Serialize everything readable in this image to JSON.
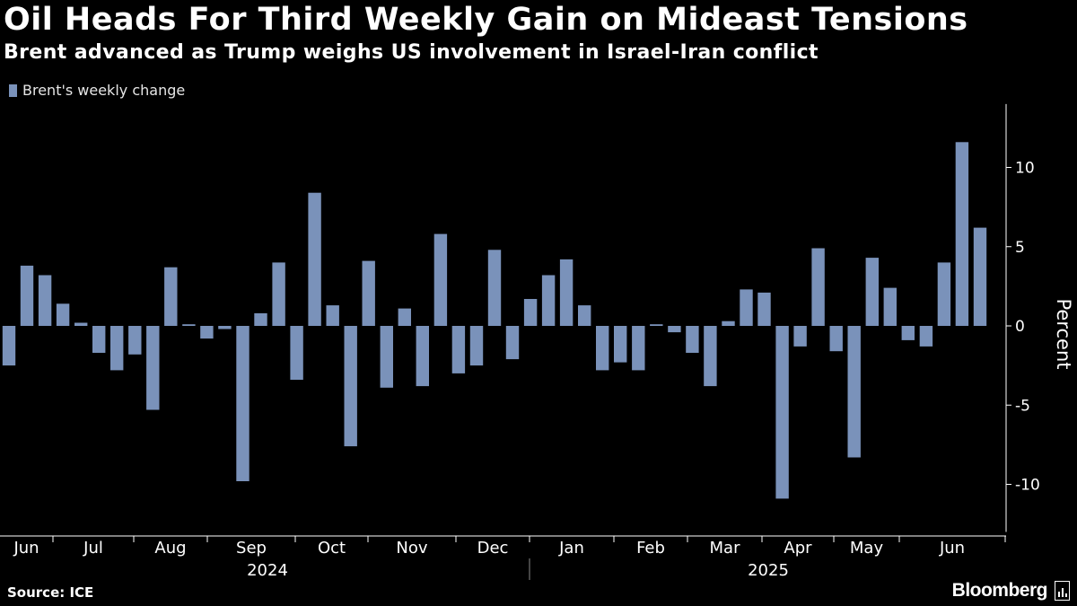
{
  "chart_data": {
    "type": "bar",
    "title": "Oil Heads For Third Weekly Gain on Mideast Tensions",
    "subtitle": "Brent advanced as Trump weighs US involvement in Israel-Iran conflict",
    "legend": "Brent's weekly change",
    "ylabel": "Percent",
    "ylim": [
      -13,
      14
    ],
    "yticks": [
      10,
      5,
      0,
      -5,
      -10
    ],
    "series": [
      {
        "name": "Brent's weekly change",
        "values": [
          -2.5,
          3.8,
          3.2,
          1.4,
          0.2,
          -1.7,
          -2.8,
          -1.8,
          -5.3,
          3.7,
          0.1,
          -0.8,
          -0.2,
          -9.8,
          0.8,
          4.0,
          -3.4,
          8.4,
          1.3,
          -7.6,
          4.1,
          -3.9,
          1.1,
          -3.8,
          5.8,
          -3.0,
          -2.5,
          4.8,
          -2.1,
          1.7,
          3.2,
          4.2,
          1.3,
          -2.8,
          -2.3,
          -2.8,
          0.1,
          -0.4,
          -1.7,
          -3.8,
          0.3,
          2.3,
          2.1,
          -10.9,
          -1.3,
          4.9,
          -1.6,
          -8.3,
          4.3,
          2.4,
          -0.9,
          -1.3,
          4.0,
          11.6,
          6.2
        ]
      }
    ],
    "month_labels": [
      "Jun",
      "Jul",
      "Aug",
      "Sep",
      "Oct",
      "Nov",
      "Dec",
      "Jan",
      "Feb",
      "Mar",
      "Apr",
      "May",
      "Jun"
    ],
    "year_labels": [
      "2024",
      "2025"
    ],
    "colors": {
      "bar": "#7a92ba",
      "background": "#000000",
      "axis": "#ffffff",
      "text": "#ffffff"
    }
  },
  "footer": {
    "source": "Source: ICE",
    "brand": "Bloomberg"
  }
}
